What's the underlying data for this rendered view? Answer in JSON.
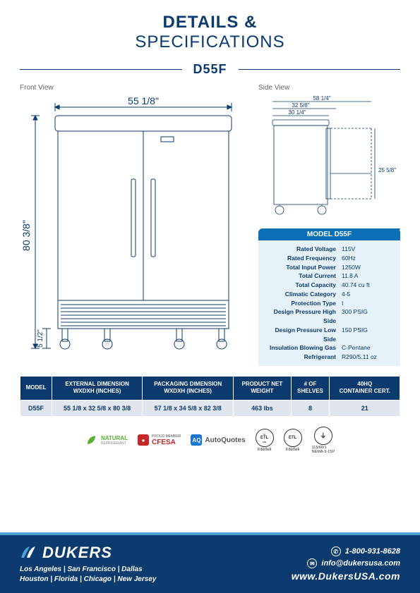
{
  "header": {
    "line1": "DETAILS &",
    "line2": "SPECIFICATIONS"
  },
  "model_code": "D55F",
  "views": {
    "front_label": "Front View",
    "side_label": "Side View"
  },
  "front_dims": {
    "width": "55 1/8\"",
    "height": "80 3/8\"",
    "base_height": "5 1/2\""
  },
  "side_dims": {
    "total_depth": "58 1/4\"",
    "depth2": "32 5/8\"",
    "depth3": "30 1/4\"",
    "door_open": "25 5/8\""
  },
  "spec_box": {
    "title": "MODEL D55F",
    "rows": [
      {
        "k": "Rated  Voltage",
        "v": "115V"
      },
      {
        "k": "Rated  Frequency",
        "v": "60Hz"
      },
      {
        "k": "Total Input Power",
        "v": "1250W"
      },
      {
        "k": "Total Current",
        "v": "11.8 A"
      },
      {
        "k": "Total Capacity",
        "v": "40.74 cu ft"
      },
      {
        "k": "Climatic Category",
        "v": "4-5"
      },
      {
        "k": "Protection Type",
        "v": "I"
      },
      {
        "k": "Design Pressure High Side",
        "v": "300 PSIG"
      },
      {
        "k": "Design Pressure Low Side",
        "v": "150 PSIG"
      },
      {
        "k": "Insulation Blowing Gas",
        "v": "C-Pentane"
      },
      {
        "k": "Refrigerant",
        "v": "R290/5.11 oz"
      }
    ]
  },
  "table": {
    "headers": [
      "MODEL",
      "EXTERNAL DIMENSION\nWXDXH (INCHES)",
      "PACKAGING DIMENSION\nWXDXH (INCHES)",
      "PRODUCT NET\nWEIGHT",
      "# OF\nSHELVES",
      "40HQ\nCONTAINER CERT."
    ],
    "row": [
      "D55F",
      "55 1/8 x 32 5/8 x 80 3/8",
      "57 1/8 x 34 5/8 x 82 3/8",
      "463 lbs",
      "8",
      "21"
    ]
  },
  "logos": {
    "natural": "NATURAL",
    "natural_sub": "REFRIGERANT",
    "cfesa_pre": "PROUD MEMBER",
    "cfesa": "CFESA",
    "aq": "AQ",
    "autoquotes": "AutoQuotes",
    "etl_c": "c ETL us",
    "etl": "ETL",
    "intertek": "Intertek",
    "nema": "115/60/1\nNEMA-5-15P"
  },
  "footer": {
    "brand": "DUKERS",
    "locations1": "Los Angeles | San Francisco | Dallas",
    "locations2": "Houston | Florida | Chicago | New Jersey",
    "phone": "1-800-931-8628",
    "email": "info@dukersusa.com",
    "website": "www.DukersUSA.com"
  },
  "colors": {
    "primary": "#0b3a6f",
    "accent": "#0b6fb5",
    "light_blue": "#e6f2fa",
    "row_bg": "#e1e5ee",
    "stripe": "#4aa3d9"
  }
}
